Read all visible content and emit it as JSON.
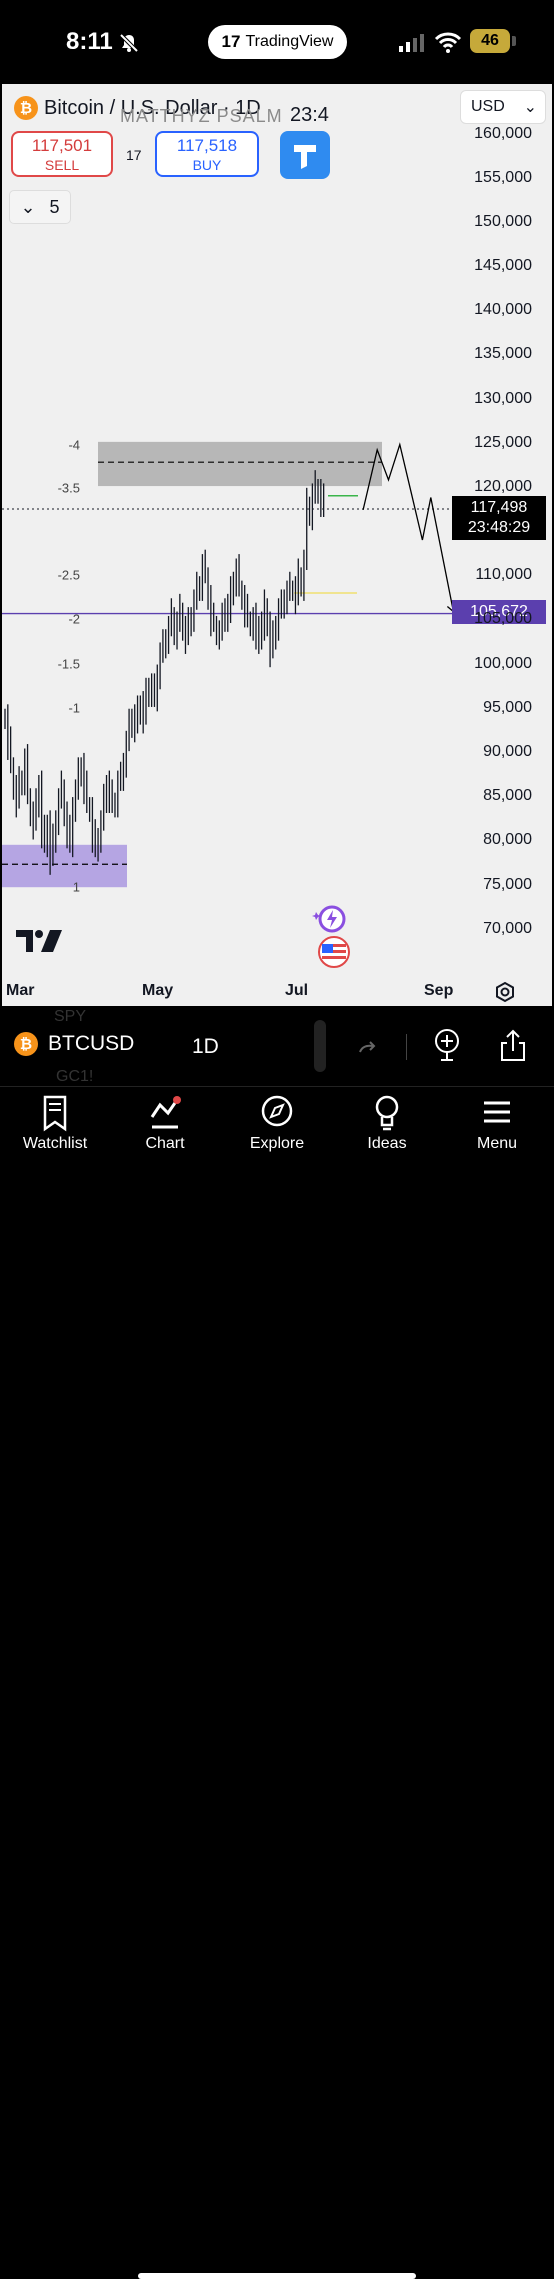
{
  "status_bar": {
    "time": "8:11",
    "pill_logo": "17",
    "pill_label": "TradingView",
    "battery": "46"
  },
  "header": {
    "coin_glyph": "₿",
    "title": "Bitcoin / U.S. Dollar · 1D",
    "watermark": "MATTHYZ PSALM",
    "countdown_fragment": "23:4",
    "currency": "USD",
    "sell": {
      "price": "117,501",
      "label": "SELL"
    },
    "spread": "17",
    "buy": {
      "price": "117,518",
      "label": "BUY"
    },
    "indicators_count": "5"
  },
  "chart_data": {
    "type": "candlestick",
    "symbol": "BTCUSD",
    "interval": "1D",
    "x_labels": [
      "Mar",
      "May",
      "Jul",
      "Sep"
    ],
    "y_ticks": [
      "160,000",
      "155,000",
      "150,000",
      "145,000",
      "140,000",
      "135,000",
      "130,000",
      "125,000",
      "120,000",
      "110,000",
      "105,000",
      "100,000",
      "95,000",
      "90,000",
      "85,000",
      "80,000",
      "75,000",
      "70,000"
    ],
    "ylim": [
      67000,
      163000
    ],
    "last_price": "117,498",
    "last_price_countdown": "23:48:29",
    "horizontal_line": {
      "label": "105,672",
      "value": 105672,
      "color": "#5b3fae"
    },
    "fib_levels": [
      {
        "label": "-4",
        "value": 124800
      },
      {
        "label": "-3.5",
        "value": 119900
      },
      {
        "label": "-2.5",
        "value": 110000
      },
      {
        "label": "-2",
        "value": 105000
      },
      {
        "label": "-1.5",
        "value": 100000
      },
      {
        "label": "-1",
        "value": 95000
      },
      {
        "label": "1",
        "value": 74700
      }
    ],
    "supply_zone": {
      "low": 120100,
      "high": 125100
    },
    "demand_zone": {
      "low": 74700,
      "high": 79500
    },
    "closes": [
      94000,
      91000,
      88500,
      86000,
      84500,
      86500,
      87000,
      89000,
      85000,
      83000,
      82000,
      84000,
      86500,
      81000,
      79500,
      82000,
      78000,
      80000,
      82500,
      84500,
      86000,
      83000,
      81000,
      79500,
      84000,
      85500,
      87500,
      88500,
      86000,
      84000,
      83500,
      80500,
      79000,
      80500,
      82000,
      84500,
      86500,
      85000,
      84000,
      84500,
      86500,
      87000,
      89000,
      91000,
      93000,
      94000,
      93000,
      94500,
      95500,
      94000,
      96500,
      97500,
      97000,
      96000,
      99000,
      101000,
      102000,
      103000,
      104000,
      105500,
      103500,
      104500,
      106000,
      104000,
      103000,
      104500,
      105500,
      107000,
      108500,
      109000,
      111000,
      110000,
      107500,
      105000,
      104500,
      103500,
      103500,
      105000,
      106500,
      105500,
      108000,
      109500,
      110500,
      108500,
      107500,
      106000,
      105000,
      104500,
      105000,
      102500,
      104500,
      103500,
      106500,
      104500,
      101500,
      103000,
      104500,
      106000,
      106500,
      107500,
      108000,
      108500,
      108500,
      107500,
      110000,
      109000,
      111500,
      118000,
      117000,
      119000,
      120000,
      119500,
      118500,
      117498
    ],
    "projection": [
      [
        127,
        117400
      ],
      [
        132,
        124200
      ],
      [
        136,
        120800
      ],
      [
        140,
        124800
      ],
      [
        144,
        119400
      ],
      [
        148,
        114000
      ],
      [
        151,
        118800
      ],
      [
        159,
        105900
      ]
    ]
  },
  "toolbar": {
    "symbol": "BTCUSD",
    "interval": "1D",
    "behind_1": "SPY",
    "behind_2": "GC1!"
  },
  "nav": [
    {
      "label": "Watchlist",
      "icon": "watchlist-icon"
    },
    {
      "label": "Chart",
      "icon": "chart-icon"
    },
    {
      "label": "Explore",
      "icon": "compass-icon"
    },
    {
      "label": "Ideas",
      "icon": "lightbulb-icon"
    },
    {
      "label": "Menu",
      "icon": "menu-icon"
    }
  ],
  "colors": {
    "sell": "#d43c3c",
    "buy": "#2962ff",
    "horizontal_line": "#5b3fae",
    "supply_zone": "#a9a9a9",
    "demand_zone": "#b5a5e3"
  }
}
